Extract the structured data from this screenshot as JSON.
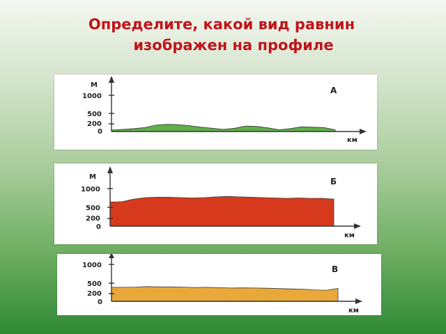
{
  "title": {
    "line1": "Определите, какой вид равнин",
    "line2": "изображен на профиле"
  },
  "profiles": [
    {
      "id": "a",
      "letter": "А",
      "y_unit": "М",
      "x_unit": "км",
      "ticks": [
        "1000",
        "500",
        "200",
        "0"
      ],
      "fill_color": "#5fae4a",
      "elevation_m": [
        40,
        60,
        80,
        110,
        180,
        200,
        190,
        160,
        120,
        90,
        60,
        90,
        150,
        140,
        100,
        50,
        80,
        130,
        120,
        110,
        50
      ]
    },
    {
      "id": "b",
      "letter": "Б",
      "y_unit": "М",
      "x_unit": "км",
      "ticks": [
        "1000",
        "500",
        "200",
        "0"
      ],
      "fill_color": "#d7391c",
      "elevation_m": [
        640,
        650,
        720,
        760,
        770,
        770,
        760,
        750,
        760,
        780,
        790,
        780,
        770,
        760,
        750,
        740,
        750,
        740,
        740,
        720
      ]
    },
    {
      "id": "c",
      "letter": "В",
      "y_unit": "",
      "x_unit": "км",
      "ticks": [
        "1000",
        "500",
        "200",
        "0"
      ],
      "fill_color": "#e8a83a",
      "elevation_m": [
        380,
        380,
        385,
        400,
        390,
        390,
        385,
        375,
        380,
        370,
        360,
        365,
        360,
        355,
        345,
        335,
        330,
        310,
        300,
        350
      ]
    }
  ]
}
